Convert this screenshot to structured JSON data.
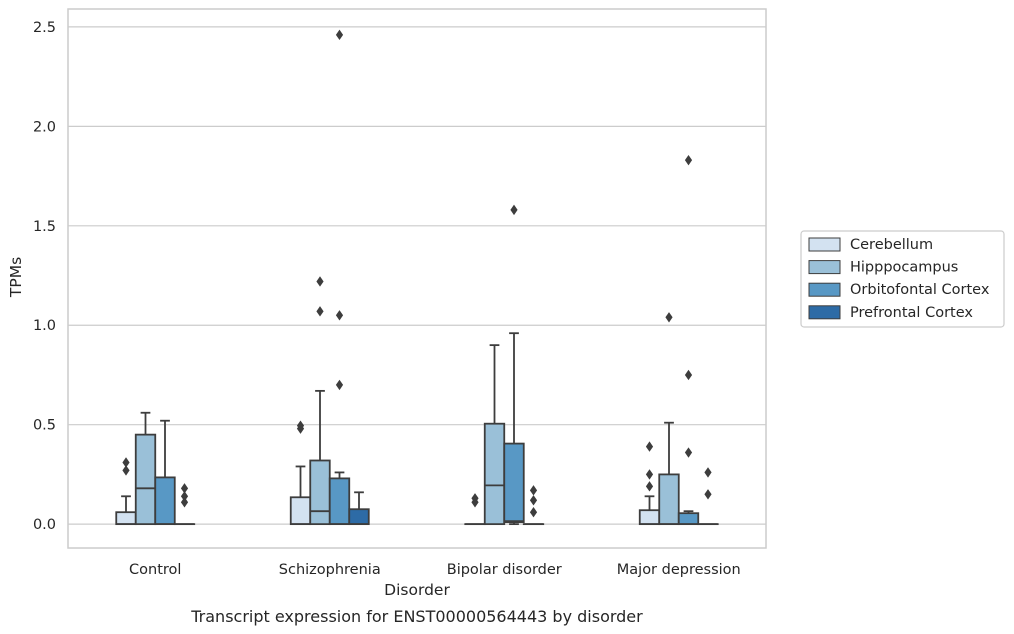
{
  "chart_data": {
    "type": "box",
    "xlabel": "Disorder",
    "ylabel": "TPMs",
    "caption": "Transcript expression for ENST00000564443 by disorder",
    "ylim": [
      -0.12,
      2.59
    ],
    "yticks": [
      "0.0",
      "0.5",
      "1.0",
      "1.5",
      "2.0",
      "2.5"
    ],
    "grid": true,
    "legend_position": "right",
    "categories": [
      "Control",
      "Schizophrenia",
      "Bipolar disorder",
      "Major depression"
    ],
    "series": [
      {
        "name": "Cerebellum",
        "color": "#d3e2f1",
        "boxes": [
          {
            "q1": 0,
            "median": 0,
            "q3": 0.06,
            "whisker_low": 0,
            "whisker_high": 0.14,
            "outliers": [
              0.27,
              0.31
            ]
          },
          {
            "q1": 0,
            "median": 0,
            "q3": 0.135,
            "whisker_low": 0,
            "whisker_high": 0.29,
            "outliers": [
              0.48,
              0.495
            ]
          },
          {
            "q1": 0,
            "median": 0,
            "q3": 0,
            "whisker_low": 0,
            "whisker_high": 0,
            "outliers": [
              0.11,
              0.13
            ]
          },
          {
            "q1": 0,
            "median": 0,
            "q3": 0.07,
            "whisker_low": 0,
            "whisker_high": 0.14,
            "outliers": [
              0.19,
              0.25,
              0.39
            ]
          }
        ]
      },
      {
        "name": "Hipppocampus",
        "color": "#9ac0d8",
        "boxes": [
          {
            "q1": 0,
            "median": 0.18,
            "q3": 0.45,
            "whisker_low": 0,
            "whisker_high": 0.56,
            "outliers": []
          },
          {
            "q1": 0,
            "median": 0.065,
            "q3": 0.32,
            "whisker_low": 0,
            "whisker_high": 0.67,
            "outliers": [
              1.07,
              1.22
            ]
          },
          {
            "q1": 0,
            "median": 0.195,
            "q3": 0.505,
            "whisker_low": 0,
            "whisker_high": 0.9,
            "outliers": []
          },
          {
            "q1": 0,
            "median": 0,
            "q3": 0.25,
            "whisker_low": 0,
            "whisker_high": 0.51,
            "outliers": [
              1.04
            ]
          }
        ]
      },
      {
        "name": "Orbitofontal Cortex",
        "color": "#5898c5",
        "boxes": [
          {
            "q1": 0,
            "median": 0,
            "q3": 0.235,
            "whisker_low": 0,
            "whisker_high": 0.52,
            "outliers": []
          },
          {
            "q1": 0,
            "median": 0,
            "q3": 0.23,
            "whisker_low": 0,
            "whisker_high": 0.26,
            "outliers": [
              0.7,
              1.05,
              2.46
            ]
          },
          {
            "q1": 0.01,
            "median": 0.015,
            "q3": 0.405,
            "whisker_low": 0,
            "whisker_high": 0.96,
            "outliers": [
              1.58
            ]
          },
          {
            "q1": 0,
            "median": 0,
            "q3": 0.055,
            "whisker_low": 0,
            "whisker_high": 0.065,
            "outliers": [
              0.36,
              0.75,
              1.83
            ]
          }
        ]
      },
      {
        "name": "Prefrontal Cortex",
        "color": "#2d6ba6",
        "boxes": [
          {
            "q1": 0,
            "median": 0,
            "q3": 0,
            "whisker_low": 0,
            "whisker_high": 0,
            "outliers": [
              0.11,
              0.14,
              0.18
            ]
          },
          {
            "q1": 0,
            "median": 0,
            "q3": 0.075,
            "whisker_low": 0,
            "whisker_high": 0.16,
            "outliers": []
          },
          {
            "q1": 0,
            "median": 0,
            "q3": 0,
            "whisker_low": 0,
            "whisker_high": 0,
            "outliers": [
              0.06,
              0.12,
              0.17
            ]
          },
          {
            "q1": 0,
            "median": 0,
            "q3": 0,
            "whisker_low": 0,
            "whisker_high": 0,
            "outliers": [
              0.15,
              0.26
            ]
          }
        ]
      }
    ]
  }
}
